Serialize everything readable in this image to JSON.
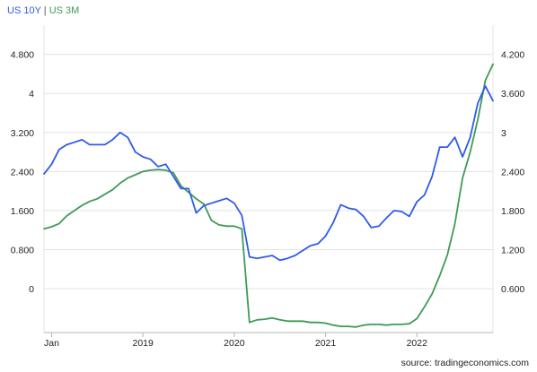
{
  "header": {
    "series1_label": "US 10Y",
    "separator": "|",
    "series2_label": "US 3M"
  },
  "footer": {
    "source": "source: tradingeconomics.com"
  },
  "colors": {
    "series1": "#2f5bea",
    "series2": "#3e9a58",
    "grid": "#e3e3e3",
    "axis": "#b5b5b5"
  },
  "chart_data": {
    "type": "line",
    "grid": true,
    "legend_position": "top-left",
    "x_ticks": [
      {
        "label": "Jan",
        "date": "2018-01"
      },
      {
        "label": "2019",
        "date": "2019-01"
      },
      {
        "label": "2020",
        "date": "2020-01"
      },
      {
        "label": "2021",
        "date": "2021-01"
      },
      {
        "label": "2022",
        "date": "2022-01"
      }
    ],
    "x_range": [
      "2017-12",
      "2022-11"
    ],
    "left_axis": {
      "ticks": [
        "4.800",
        "4",
        "3.200",
        "2.400",
        "1.600",
        "0.800",
        "0"
      ],
      "tick_values": [
        4.8,
        4.0,
        3.2,
        2.4,
        1.6,
        0.8,
        0.0
      ],
      "ylim": [
        -0.9,
        5.4
      ]
    },
    "right_axis": {
      "ticks": [
        "4.200",
        "3.600",
        "3",
        "2.400",
        "1.800",
        "1.200",
        "0.600"
      ],
      "tick_values": [
        4.2,
        3.6,
        3.0,
        2.4,
        1.8,
        1.2,
        0.6
      ]
    },
    "series": [
      {
        "name": "US 10Y",
        "axis": "left",
        "x": [
          "2017-12",
          "2018-01",
          "2018-02",
          "2018-03",
          "2018-04",
          "2018-05",
          "2018-06",
          "2018-07",
          "2018-08",
          "2018-09",
          "2018-10",
          "2018-11",
          "2018-12",
          "2019-01",
          "2019-02",
          "2019-03",
          "2019-04",
          "2019-05",
          "2019-06",
          "2019-07",
          "2019-08",
          "2019-09",
          "2019-10",
          "2019-11",
          "2019-12",
          "2020-01",
          "2020-02",
          "2020-03",
          "2020-04",
          "2020-05",
          "2020-06",
          "2020-07",
          "2020-08",
          "2020-09",
          "2020-10",
          "2020-11",
          "2020-12",
          "2021-01",
          "2021-02",
          "2021-03",
          "2021-04",
          "2021-05",
          "2021-06",
          "2021-07",
          "2021-08",
          "2021-09",
          "2021-10",
          "2021-11",
          "2021-12",
          "2022-01",
          "2022-02",
          "2022-03",
          "2022-04",
          "2022-05",
          "2022-06",
          "2022-07",
          "2022-08",
          "2022-09",
          "2022-10",
          "2022-11"
        ],
        "values": [
          2.35,
          2.55,
          2.85,
          2.95,
          3.0,
          3.05,
          2.95,
          2.95,
          2.95,
          3.05,
          3.2,
          3.1,
          2.8,
          2.7,
          2.65,
          2.5,
          2.55,
          2.3,
          2.05,
          2.05,
          1.55,
          1.7,
          1.75,
          1.8,
          1.85,
          1.75,
          1.5,
          0.65,
          0.62,
          0.65,
          0.68,
          0.58,
          0.62,
          0.68,
          0.78,
          0.88,
          0.92,
          1.08,
          1.35,
          1.72,
          1.65,
          1.62,
          1.48,
          1.25,
          1.28,
          1.45,
          1.6,
          1.58,
          1.48,
          1.78,
          1.92,
          2.3,
          2.9,
          2.9,
          3.1,
          2.7,
          3.1,
          3.8,
          4.15,
          3.85
        ]
      },
      {
        "name": "US 3M",
        "axis": "right",
        "x": [
          "2017-12",
          "2018-01",
          "2018-02",
          "2018-03",
          "2018-04",
          "2018-05",
          "2018-06",
          "2018-07",
          "2018-08",
          "2018-09",
          "2018-10",
          "2018-11",
          "2018-12",
          "2019-01",
          "2019-02",
          "2019-03",
          "2019-04",
          "2019-05",
          "2019-06",
          "2019-07",
          "2019-08",
          "2019-09",
          "2019-10",
          "2019-11",
          "2019-12",
          "2020-01",
          "2020-02",
          "2020-03",
          "2020-04",
          "2020-05",
          "2020-06",
          "2020-07",
          "2020-08",
          "2020-09",
          "2020-10",
          "2020-11",
          "2020-12",
          "2021-01",
          "2021-02",
          "2021-03",
          "2021-04",
          "2021-05",
          "2021-06",
          "2021-07",
          "2021-08",
          "2021-09",
          "2021-10",
          "2021-11",
          "2021-12",
          "2022-01",
          "2022-02",
          "2022-03",
          "2022-04",
          "2022-05",
          "2022-06",
          "2022-07",
          "2022-08",
          "2022-09",
          "2022-10",
          "2022-11"
        ],
        "values": [
          1.52,
          1.55,
          1.6,
          1.72,
          1.8,
          1.88,
          1.94,
          1.98,
          2.05,
          2.12,
          2.22,
          2.3,
          2.35,
          2.4,
          2.42,
          2.43,
          2.42,
          2.38,
          2.18,
          2.08,
          1.98,
          1.9,
          1.65,
          1.58,
          1.56,
          1.56,
          1.52,
          0.08,
          0.12,
          0.13,
          0.15,
          0.12,
          0.1,
          0.1,
          0.1,
          0.08,
          0.08,
          0.07,
          0.04,
          0.02,
          0.02,
          0.01,
          0.04,
          0.05,
          0.05,
          0.04,
          0.05,
          0.05,
          0.06,
          0.14,
          0.32,
          0.52,
          0.8,
          1.12,
          1.6,
          2.3,
          2.7,
          3.2,
          3.8,
          4.05
        ]
      }
    ]
  }
}
